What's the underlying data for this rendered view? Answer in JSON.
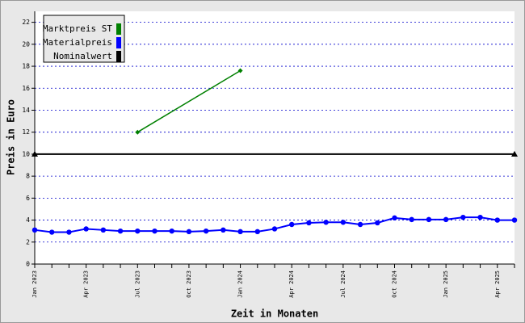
{
  "chart_data": {
    "type": "line",
    "xlabel": "Zeit in Monaten",
    "ylabel": "Preis in Euro",
    "categories": [
      "Jan 2023",
      null,
      null,
      "Apr 2023",
      null,
      null,
      "Jul 2023",
      null,
      null,
      "Oct 2023",
      null,
      null,
      "Jan 2024",
      null,
      null,
      "Apr 2024",
      null,
      null,
      "Jul 2024",
      null,
      null,
      "Oct 2024",
      null,
      null,
      "Jan 2025",
      null,
      null,
      "Apr 2025",
      null
    ],
    "series": [
      {
        "name": "Marktpreis ST",
        "color": "#008000",
        "x": [
          "Jul 2023",
          "Jan 2024"
        ],
        "values": [
          12.0,
          17.6
        ]
      },
      {
        "name": "Materialpreis",
        "color": "#0000ff",
        "values": [
          3.1,
          2.9,
          2.9,
          3.2,
          3.1,
          3.0,
          3.0,
          3.0,
          3.0,
          2.95,
          3.0,
          3.1,
          2.95,
          2.95,
          3.2,
          3.6,
          3.75,
          3.8,
          3.8,
          3.6,
          3.75,
          4.2,
          4.05,
          4.05,
          4.05,
          4.25,
          4.25,
          4.0,
          4.0
        ]
      },
      {
        "name": "Nominalwert",
        "color": "#000000",
        "hline": 10
      }
    ],
    "ylim": [
      0,
      23
    ],
    "yticks": [
      0,
      2,
      4,
      6,
      8,
      10,
      12,
      14,
      16,
      18,
      20,
      22
    ],
    "grid": true
  }
}
